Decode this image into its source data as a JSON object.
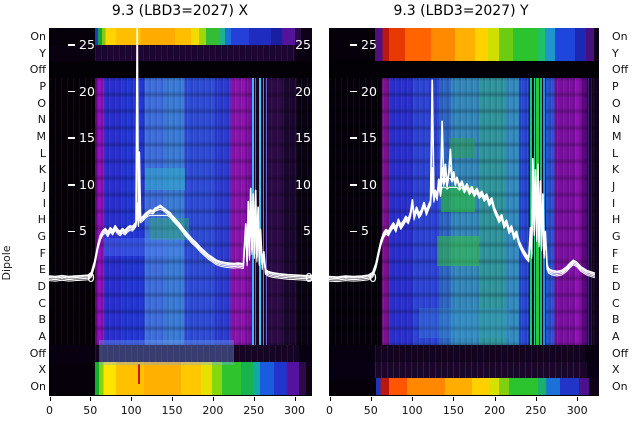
{
  "figure": {
    "y_axis_label": "Dipole"
  },
  "chart_data": [
    {
      "type": "heatmap",
      "title": "9.3 (LBD3=2027) X",
      "rows": [
        "On",
        "Y",
        "Off",
        "P",
        "O",
        "N",
        "M",
        "L",
        "K",
        "J",
        "I",
        "H",
        "G",
        "F",
        "E",
        "D",
        "C",
        "B",
        "A",
        "Off",
        "X",
        "On"
      ],
      "x_ticks": [
        0,
        50,
        100,
        150,
        200,
        250,
        300
      ],
      "x_range": [
        0,
        322
      ],
      "overlay_y_ticks": [
        25,
        20,
        15,
        10,
        5,
        0
      ],
      "y_tick_labels_right": [
        "25",
        "20",
        "15",
        "10",
        "5",
        "0"
      ],
      "colormap": [
        "#000004",
        "#3b0f70",
        "#8c12b8",
        "#2a2fd2",
        "#2fa8c8",
        "#2fbf4f",
        "#d4e022",
        "#ffc400",
        "#ff7a00",
        "#e02010"
      ],
      "overlay_line": [
        [
          0,
          0.2
        ],
        [
          8,
          0.15
        ],
        [
          16,
          0.25
        ],
        [
          24,
          0.15
        ],
        [
          32,
          0.2
        ],
        [
          40,
          0.25
        ],
        [
          48,
          0.3
        ],
        [
          52,
          0.6
        ],
        [
          56,
          1.8
        ],
        [
          60,
          3.6
        ],
        [
          63,
          4.6
        ],
        [
          66,
          5.1
        ],
        [
          69,
          5.3
        ],
        [
          72,
          4.9
        ],
        [
          75,
          5.4
        ],
        [
          78,
          5.1
        ],
        [
          81,
          5.6
        ],
        [
          84,
          5.2
        ],
        [
          87,
          5.0
        ],
        [
          90,
          5.3
        ],
        [
          93,
          5.1
        ],
        [
          96,
          5.4
        ],
        [
          99,
          5.6
        ],
        [
          102,
          5.5
        ],
        [
          105,
          5.8
        ],
        [
          106.5,
          6.0
        ],
        [
          108,
          26.8
        ],
        [
          109.5,
          6.0
        ],
        [
          110.5,
          13.5
        ],
        [
          112,
          6.4
        ],
        [
          115,
          6.6
        ],
        [
          118,
          6.9
        ],
        [
          121,
          7.1
        ],
        [
          124,
          7.3
        ],
        [
          127,
          7.2
        ],
        [
          130,
          7.5
        ],
        [
          133,
          7.6
        ],
        [
          136,
          7.8
        ],
        [
          139,
          7.6
        ],
        [
          142,
          7.4
        ],
        [
          145,
          7.2
        ],
        [
          148,
          7.0
        ],
        [
          152,
          6.6
        ],
        [
          156,
          6.2
        ],
        [
          160,
          5.8
        ],
        [
          165,
          5.2
        ],
        [
          170,
          4.7
        ],
        [
          175,
          4.2
        ],
        [
          180,
          3.8
        ],
        [
          185,
          3.3
        ],
        [
          190,
          2.9
        ],
        [
          195,
          2.5
        ],
        [
          200,
          2.2
        ],
        [
          205,
          1.9
        ],
        [
          210,
          1.75
        ],
        [
          215,
          1.65
        ],
        [
          220,
          1.6
        ],
        [
          226,
          1.55
        ],
        [
          232,
          1.6
        ],
        [
          238,
          1.5
        ],
        [
          241,
          5.8
        ],
        [
          242.5,
          1.8
        ],
        [
          244,
          8.2
        ],
        [
          245.5,
          2.4
        ],
        [
          247,
          9.6
        ],
        [
          248.5,
          3.0
        ],
        [
          250,
          9.0
        ],
        [
          251.5,
          2.6
        ],
        [
          253,
          9.4
        ],
        [
          254.5,
          2.2
        ],
        [
          256,
          7.6
        ],
        [
          257.5,
          1.8
        ],
        [
          259,
          5.2
        ],
        [
          261,
          1.4
        ],
        [
          263,
          2.8
        ],
        [
          265,
          0.9
        ],
        [
          268,
          0.7
        ],
        [
          274,
          0.55
        ],
        [
          282,
          0.45
        ],
        [
          292,
          0.35
        ],
        [
          304,
          0.3
        ],
        [
          322,
          0.2
        ]
      ]
    },
    {
      "type": "heatmap",
      "title": "9.3 (LBD3=2027) Y",
      "rows": [
        "On",
        "Y",
        "Off",
        "P",
        "O",
        "N",
        "M",
        "L",
        "K",
        "J",
        "I",
        "H",
        "G",
        "F",
        "E",
        "D",
        "C",
        "B",
        "A",
        "Off",
        "X",
        "On"
      ],
      "x_ticks": [
        0,
        50,
        100,
        150,
        200,
        250,
        300
      ],
      "x_range": [
        0,
        327
      ],
      "overlay_y_ticks": [
        25,
        20,
        15,
        10,
        5,
        0
      ],
      "y_tick_labels_right": [],
      "colormap": [
        "#000004",
        "#3b0f70",
        "#8c12b8",
        "#2a2fd2",
        "#2fa8c8",
        "#2fbf4f",
        "#d4e022",
        "#ffc400",
        "#ff7a00",
        "#e02010"
      ],
      "overlay_line": [
        [
          0,
          0.15
        ],
        [
          10,
          0.1
        ],
        [
          20,
          0.2
        ],
        [
          30,
          0.15
        ],
        [
          40,
          0.2
        ],
        [
          48,
          0.3
        ],
        [
          53,
          0.6
        ],
        [
          57,
          1.6
        ],
        [
          60,
          2.8
        ],
        [
          63,
          4.0
        ],
        [
          66,
          4.8
        ],
        [
          69,
          5.2
        ],
        [
          72,
          5.0
        ],
        [
          75,
          5.5
        ],
        [
          78,
          5.9
        ],
        [
          81,
          5.4
        ],
        [
          84,
          6.3
        ],
        [
          87,
          5.7
        ],
        [
          90,
          6.1
        ],
        [
          93,
          6.6
        ],
        [
          96,
          6.3
        ],
        [
          99,
          7.1
        ],
        [
          101,
          8.4
        ],
        [
          103,
          6.7
        ],
        [
          106,
          7.6
        ],
        [
          109,
          6.9
        ],
        [
          112,
          7.3
        ],
        [
          115,
          8.1
        ],
        [
          118,
          7.2
        ],
        [
          121,
          7.9
        ],
        [
          123,
          8.3
        ],
        [
          125,
          21.2
        ],
        [
          127,
          8.6
        ],
        [
          129,
          9.4
        ],
        [
          131,
          8.8
        ],
        [
          133,
          10.6
        ],
        [
          135,
          9.2
        ],
        [
          137,
          16.8
        ],
        [
          139,
          10.2
        ],
        [
          141,
          12.2
        ],
        [
          143,
          10.0
        ],
        [
          145,
          11.2
        ],
        [
          147,
          13.8
        ],
        [
          149,
          10.6
        ],
        [
          151,
          11.4
        ],
        [
          153,
          10.2
        ],
        [
          155,
          10.8
        ],
        [
          158,
          9.9
        ],
        [
          161,
          10.4
        ],
        [
          164,
          9.6
        ],
        [
          167,
          10.1
        ],
        [
          170,
          9.4
        ],
        [
          173,
          9.8
        ],
        [
          176,
          9.2
        ],
        [
          179,
          9.6
        ],
        [
          182,
          9.0
        ],
        [
          185,
          9.3
        ],
        [
          188,
          8.7
        ],
        [
          191,
          9.0
        ],
        [
          194,
          8.2
        ],
        [
          197,
          8.6
        ],
        [
          200,
          7.6
        ],
        [
          203,
          7.0
        ],
        [
          206,
          6.4
        ],
        [
          209,
          6.8
        ],
        [
          212,
          5.8
        ],
        [
          215,
          6.2
        ],
        [
          218,
          5.2
        ],
        [
          221,
          5.6
        ],
        [
          224,
          4.6
        ],
        [
          227,
          5.0
        ],
        [
          230,
          4.0
        ],
        [
          233,
          3.4
        ],
        [
          236,
          2.9
        ],
        [
          239,
          2.5
        ],
        [
          242,
          2.2
        ],
        [
          244,
          5.4
        ],
        [
          245.5,
          2.6
        ],
        [
          247,
          12.8
        ],
        [
          248.5,
          5.0
        ],
        [
          250,
          11.6
        ],
        [
          251.5,
          4.4
        ],
        [
          253,
          12.2
        ],
        [
          254.5,
          3.8
        ],
        [
          256,
          10.4
        ],
        [
          257.5,
          3.4
        ],
        [
          259,
          9.0
        ],
        [
          260.5,
          2.6
        ],
        [
          262,
          5.0
        ],
        [
          264,
          1.4
        ],
        [
          266,
          1.0
        ],
        [
          270,
          0.8
        ],
        [
          276,
          0.7
        ],
        [
          282,
          0.8
        ],
        [
          288,
          1.2
        ],
        [
          292,
          1.6
        ],
        [
          296,
          1.9
        ],
        [
          300,
          1.7
        ],
        [
          305,
          1.2
        ],
        [
          312,
          0.8
        ],
        [
          322,
          0.5
        ]
      ]
    }
  ]
}
